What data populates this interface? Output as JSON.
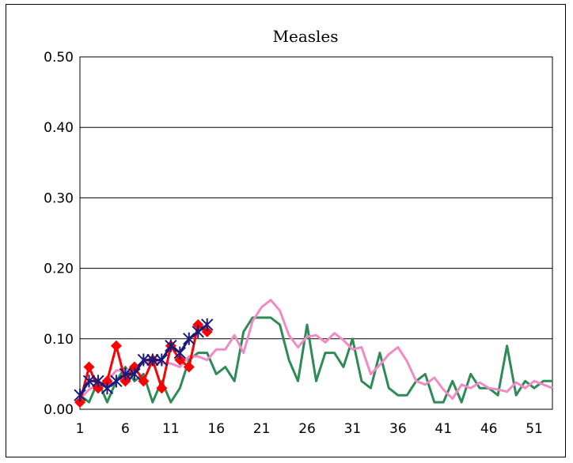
{
  "chart_data": {
    "type": "line",
    "title": "Measles",
    "xlabel": "",
    "ylabel": "",
    "xlim": [
      1,
      53
    ],
    "ylim": [
      0,
      0.5
    ],
    "x_ticks": [
      "1",
      "6",
      "11",
      "16",
      "21",
      "26",
      "31",
      "36",
      "41",
      "46",
      "51"
    ],
    "y_ticks": [
      "0.00",
      "0.10",
      "0.20",
      "0.30",
      "0.40",
      "0.50"
    ],
    "grid": "horizontal",
    "legend": "none",
    "series": [
      {
        "color": "#2e8b57",
        "marker": "none",
        "x": [
          1,
          2,
          3,
          4,
          5,
          6,
          7,
          8,
          9,
          10,
          11,
          12,
          13,
          14,
          15,
          16,
          17,
          18,
          19,
          20,
          21,
          22,
          23,
          24,
          25,
          26,
          27,
          28,
          29,
          30,
          31,
          32,
          33,
          34,
          35,
          36,
          37,
          38,
          39,
          40,
          41,
          42,
          43,
          44,
          45,
          46,
          47,
          48,
          49,
          50,
          51,
          52,
          53
        ],
        "values": [
          0.02,
          0.01,
          0.04,
          0.01,
          0.04,
          0.06,
          0.04,
          0.05,
          0.01,
          0.04,
          0.01,
          0.03,
          0.07,
          0.08,
          0.08,
          0.05,
          0.06,
          0.04,
          0.11,
          0.13,
          0.13,
          0.13,
          0.12,
          0.07,
          0.04,
          0.12,
          0.04,
          0.08,
          0.08,
          0.06,
          0.1,
          0.04,
          0.03,
          0.08,
          0.03,
          0.02,
          0.02,
          0.04,
          0.05,
          0.01,
          0.01,
          0.04,
          0.01,
          0.05,
          0.03,
          0.03,
          0.02,
          0.09,
          0.02,
          0.04,
          0.03,
          0.04,
          0.04
        ]
      },
      {
        "color": "#f08cc3",
        "marker": "none",
        "x": [
          1,
          2,
          3,
          4,
          5,
          6,
          7,
          8,
          9,
          10,
          11,
          12,
          13,
          14,
          15,
          16,
          17,
          18,
          19,
          20,
          21,
          22,
          23,
          24,
          25,
          26,
          27,
          28,
          29,
          30,
          31,
          32,
          33,
          34,
          35,
          36,
          37,
          38,
          39,
          40,
          41,
          42,
          43,
          44,
          45,
          46,
          47,
          48,
          49,
          50,
          51,
          52,
          53
        ],
        "values": [
          0.015,
          0.028,
          0.035,
          0.04,
          0.055,
          0.055,
          0.06,
          0.065,
          0.07,
          0.065,
          0.065,
          0.06,
          0.075,
          0.075,
          0.07,
          0.085,
          0.085,
          0.105,
          0.08,
          0.125,
          0.145,
          0.155,
          0.14,
          0.105,
          0.088,
          0.103,
          0.105,
          0.095,
          0.108,
          0.098,
          0.085,
          0.088,
          0.05,
          0.063,
          0.078,
          0.088,
          0.068,
          0.04,
          0.035,
          0.045,
          0.028,
          0.015,
          0.035,
          0.03,
          0.038,
          0.03,
          0.028,
          0.025,
          0.038,
          0.03,
          0.04,
          0.035,
          0.03
        ]
      },
      {
        "color": "#ff0000",
        "marker": "diamond",
        "x": [
          1,
          2,
          3,
          4,
          5,
          6,
          7,
          8,
          9,
          10,
          11,
          12,
          13,
          14,
          15
        ],
        "values": [
          0.01,
          0.06,
          0.03,
          0.04,
          0.09,
          0.04,
          0.06,
          0.04,
          0.07,
          0.03,
          0.09,
          0.07,
          0.06,
          0.12,
          0.11
        ]
      },
      {
        "color": "#1a1a7a",
        "marker": "star",
        "x": [
          1,
          2,
          3,
          4,
          5,
          6,
          7,
          8,
          9,
          10,
          11,
          12,
          13,
          14,
          15
        ],
        "values": [
          0.02,
          0.04,
          0.04,
          0.03,
          0.04,
          0.05,
          0.05,
          0.07,
          0.07,
          0.07,
          0.09,
          0.08,
          0.1,
          0.11,
          0.12
        ]
      }
    ]
  }
}
